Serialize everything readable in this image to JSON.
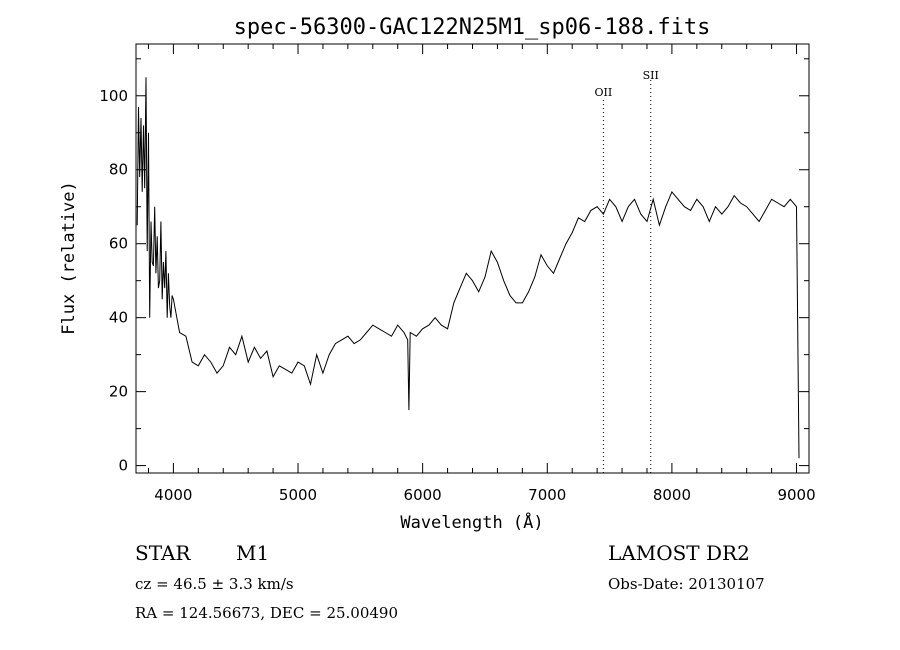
{
  "chart_data": {
    "type": "line",
    "title": "spec-56300-GAC122N25M1_sp06-188.fits",
    "xlabel": "Wavelength (Å)",
    "ylabel": "Flux (relative)",
    "xlim": [
      3700,
      9100
    ],
    "ylim": [
      -2,
      114
    ],
    "xticks": [
      4000,
      5000,
      6000,
      7000,
      8000,
      9000
    ],
    "yticks": [
      0,
      20,
      40,
      60,
      80,
      100
    ],
    "grid": false,
    "lines": [
      {
        "label": "OII",
        "x": 7450
      },
      {
        "label": "SII",
        "x": 7830
      }
    ],
    "series": [
      {
        "x": [
          3710,
          3720,
          3730,
          3740,
          3750,
          3760,
          3770,
          3780,
          3790,
          3800,
          3810,
          3820,
          3830,
          3840,
          3850,
          3860,
          3870,
          3880,
          3890,
          3900,
          3910,
          3920,
          3930,
          3940,
          3950,
          3960,
          3970,
          3980,
          3990,
          4000,
          4050,
          4100,
          4150,
          4200,
          4250,
          4300,
          4350,
          4400,
          4450,
          4500,
          4550,
          4600,
          4650,
          4700,
          4750,
          4800,
          4850,
          4900,
          4950,
          5000,
          5050,
          5100,
          5150,
          5200,
          5250,
          5300,
          5350,
          5400,
          5450,
          5500,
          5550,
          5600,
          5650,
          5700,
          5750,
          5800,
          5850,
          5880,
          5890,
          5900,
          5950,
          6000,
          6050,
          6100,
          6150,
          6200,
          6250,
          6300,
          6350,
          6400,
          6450,
          6500,
          6550,
          6600,
          6650,
          6700,
          6750,
          6800,
          6850,
          6900,
          6950,
          7000,
          7050,
          7100,
          7150,
          7200,
          7250,
          7300,
          7350,
          7400,
          7450,
          7500,
          7550,
          7600,
          7650,
          7700,
          7750,
          7800,
          7850,
          7900,
          7950,
          8000,
          8050,
          8100,
          8150,
          8200,
          8250,
          8300,
          8350,
          8400,
          8450,
          8500,
          8550,
          8600,
          8650,
          8700,
          8750,
          8800,
          8850,
          8900,
          8950,
          9000,
          9020
        ],
        "y": [
          65,
          97,
          78,
          94,
          74,
          92,
          75,
          105,
          58,
          90,
          40,
          66,
          55,
          54,
          70,
          52,
          62,
          48,
          50,
          66,
          45,
          55,
          48,
          58,
          40,
          52,
          43,
          40,
          46,
          45,
          36,
          35,
          28,
          27,
          30,
          28,
          25,
          27,
          32,
          30,
          35,
          28,
          32,
          29,
          31,
          24,
          27,
          26,
          25,
          28,
          27,
          22,
          30,
          25,
          30,
          33,
          34,
          35,
          33,
          34,
          36,
          38,
          37,
          36,
          35,
          38,
          36,
          34,
          15,
          36,
          35,
          37,
          38,
          40,
          38,
          37,
          44,
          48,
          52,
          50,
          47,
          51,
          58,
          55,
          50,
          46,
          44,
          44,
          47,
          51,
          57,
          54,
          52,
          56,
          60,
          63,
          67,
          66,
          69,
          70,
          68,
          72,
          70,
          66,
          70,
          72,
          68,
          66,
          72,
          65,
          70,
          74,
          72,
          70,
          69,
          72,
          70,
          66,
          70,
          68,
          70,
          73,
          71,
          70,
          68,
          66,
          69,
          72,
          71,
          70,
          72,
          70,
          2
        ]
      }
    ]
  },
  "info": {
    "object_class": "STAR",
    "subclass": "M1",
    "survey": "LAMOST DR2",
    "redshift": "cz = 46.5 ± 3.3 km/s",
    "obs_date": "Obs-Date: 20130107",
    "coords": "RA = 124.56673, DEC =  25.00490"
  }
}
